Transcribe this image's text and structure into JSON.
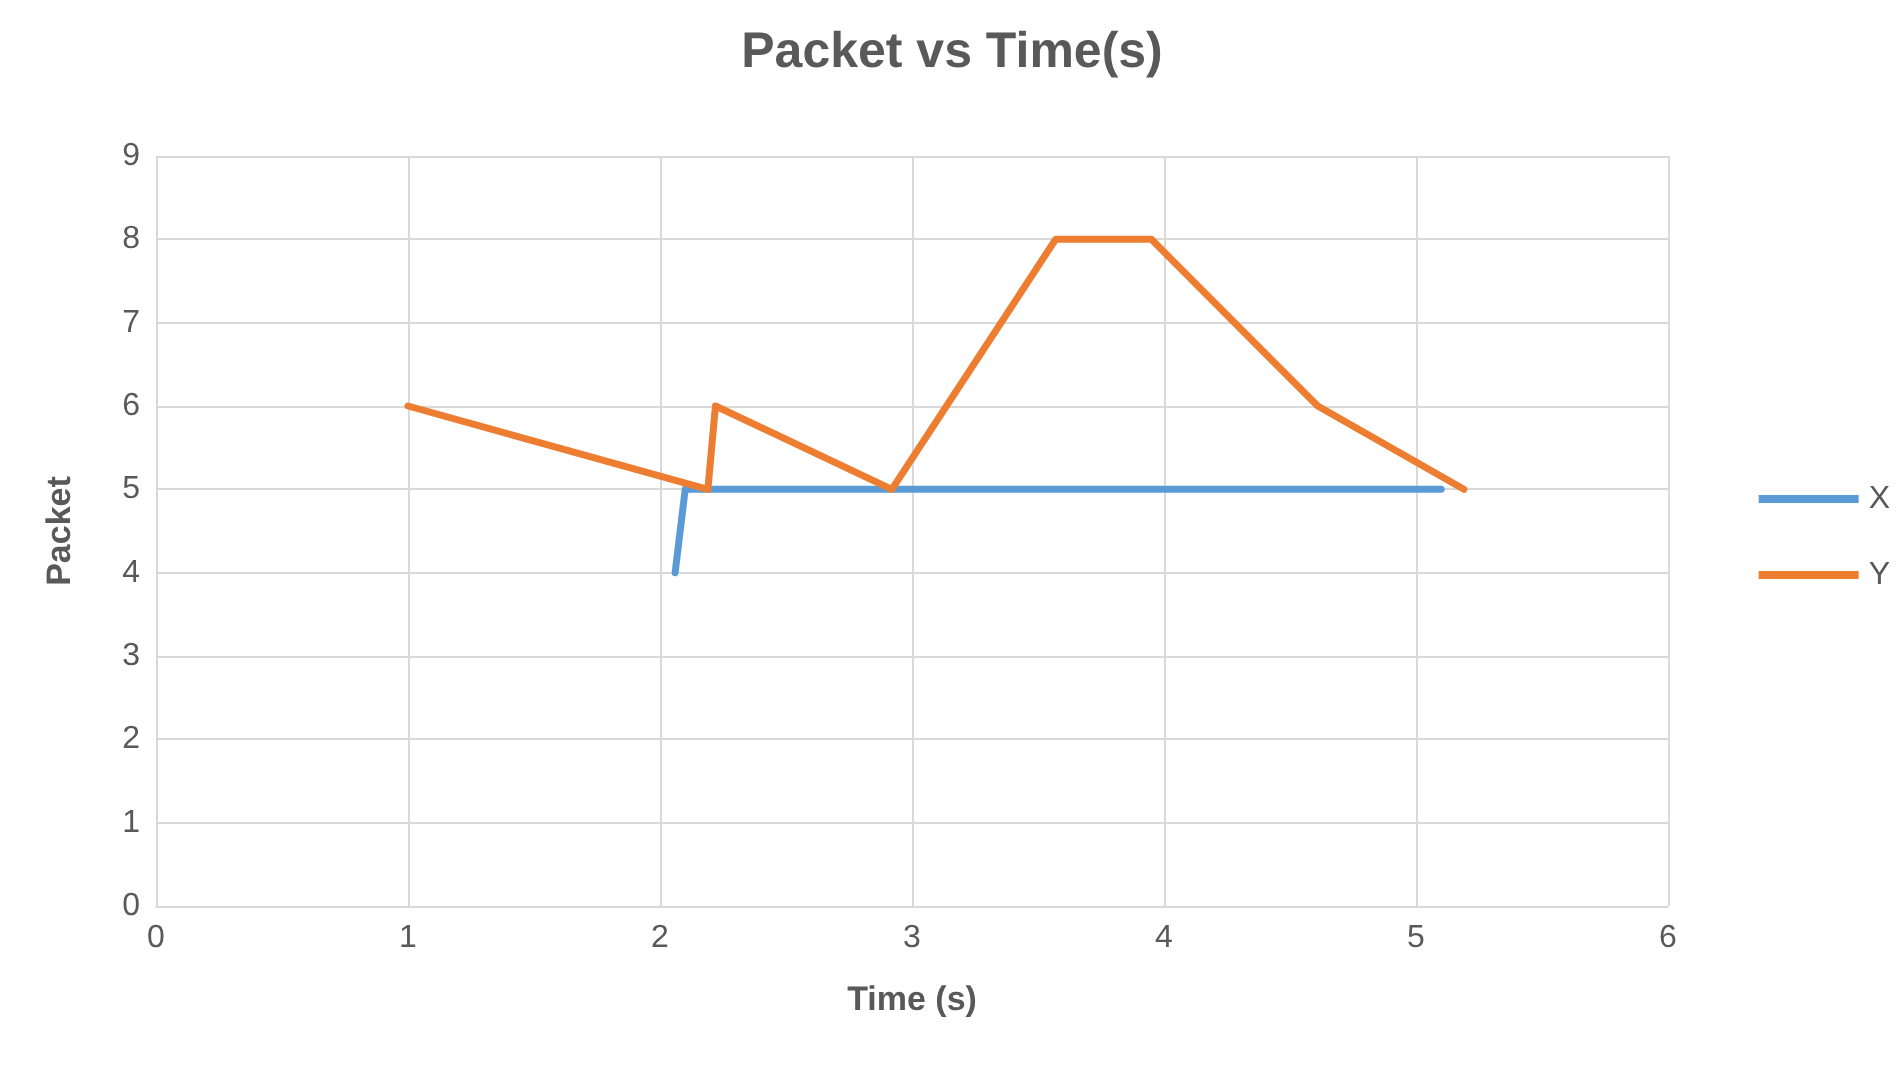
{
  "chart_data": {
    "type": "line",
    "title": "Packet vs Time(s)",
    "xlabel": "Time (s)",
    "ylabel": "Packet",
    "series": [
      {
        "name": "X",
        "color": "#5b9bd5",
        "x": [
          2.06,
          2.1,
          5.1
        ],
        "values": [
          4,
          5,
          5
        ]
      },
      {
        "name": "Y",
        "color": "#ed7d31",
        "x": [
          1,
          2.19,
          2.22,
          2.92,
          3.57,
          3.95,
          4.61,
          5.19
        ],
        "values": [
          6,
          5,
          6,
          5,
          8,
          8,
          6,
          5
        ]
      }
    ],
    "xlim": [
      0,
      6
    ],
    "xticks": [
      0,
      1,
      2,
      3,
      4,
      5,
      6
    ],
    "ylim": [
      0,
      9
    ],
    "yticks": [
      0,
      1,
      2,
      3,
      4,
      5,
      6,
      7,
      8,
      9
    ],
    "grid": true,
    "legend": "right",
    "marker": "none",
    "line_style": "solid"
  }
}
